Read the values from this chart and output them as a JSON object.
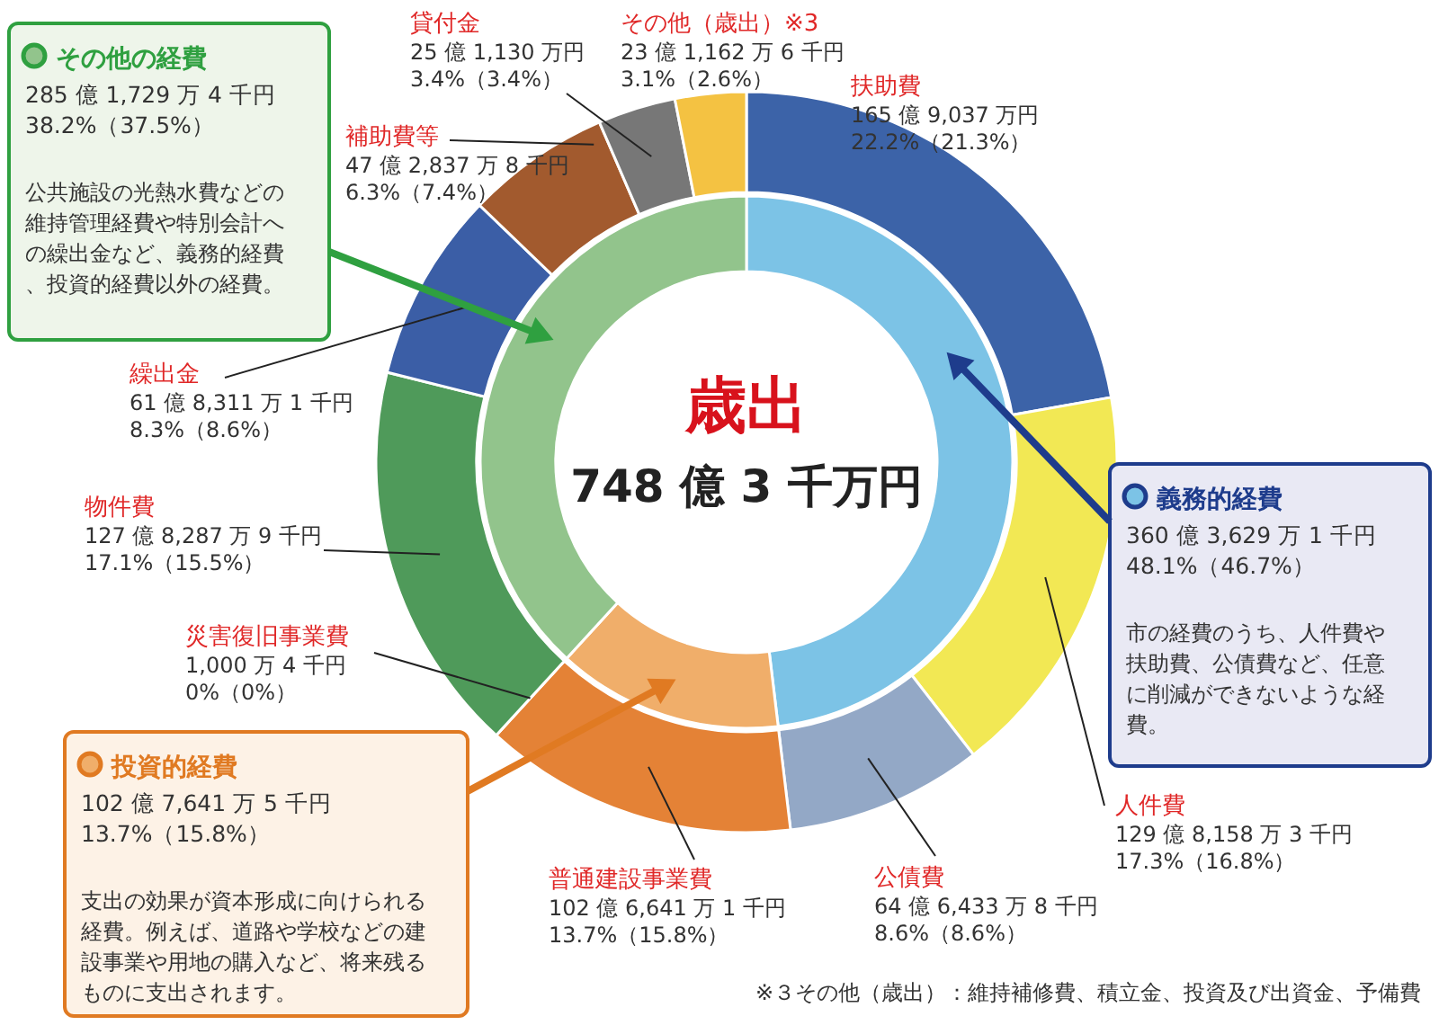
{
  "chart_data": [
    {
      "type": "donut",
      "title": "歳出",
      "legend": "left",
      "subtitle": "748 億 3 千万円",
      "categories": [
        "義務的経費",
        "投資的経費",
        "その他の経費"
      ],
      "values": [
        48.1,
        13.7,
        38.2
      ],
      "colors": [
        "#7cc3e6",
        "#f0ae6a",
        "#92c48c"
      ],
      "value_labels": [
        "360 億 3,629 万 1 千円\n48.1%（46.7%）",
        "102 億 7,641 万 5 千円\n13.7%（15.8%）",
        "285 億 1,729 万 4 千円\n38.2%（37.5%）"
      ],
      "annotations": [
        "市の経費のうち、人件費や扶助費、公債費など、任意に削減ができないような経費。",
        "支出の効果が資本形成に向けられる経費。例えば、道路や学校などの建設事業や用地の購入など、将来残るものに支出されます。",
        "公共施設の光熱水費などの維持管理経費や特別会計への繰出金など、義務的経費、投資的経費以外の経費。"
      ]
    },
    {
      "type": "donut",
      "categories": [
        "扶助費",
        "人件費",
        "公債費",
        "普通建設事業費",
        "災害復旧事業費",
        "物件費",
        "繰出金",
        "補助費等",
        "貸付金",
        "その他（歳出）※3"
      ],
      "values": [
        22.2,
        17.3,
        8.6,
        13.7,
        0,
        17.1,
        8.3,
        6.3,
        3.4,
        3.1
      ],
      "colors": [
        "#3c63a8",
        "#f2e854",
        "#93a8c6",
        "#e48236",
        "#e48236",
        "#4f9a5a",
        "#3b5ea6",
        "#a25a2e",
        "#777777",
        "#f4c242"
      ],
      "value_labels": [
        "165 億 9,037 万円\n22.2%（21.3%）",
        "129 億 8,158 万 3 千円\n17.3%（16.8%）",
        "64 億 6,433 万 8 千円\n8.6%（8.6%）",
        "102 億 6,641 万 1 千円\n13.7%（15.8%）",
        "1,000 万 4 千円\n0%（0%）",
        "127 億 8,287 万 9 千円\n17.1%（15.5%）",
        "61 億 8,311 万 1 千円\n8.3%（8.6%）",
        "47 億 2,837 万 8 千円\n6.3%（7.4%）",
        "25 億 1,130 万円\n3.4%（3.4%）",
        "23 億 1,162 万 6 千円\n3.1%（2.6%）"
      ],
      "annotations": [
        "※３その他（歳出）：維持補修費、積立金、投資及び出資金、予備費"
      ]
    }
  ]
}
